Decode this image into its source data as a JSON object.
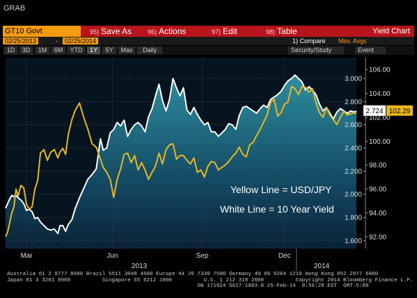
{
  "window_title": "GRAB",
  "toolbar": {
    "ticker": "GT10 Govt",
    "buttons": [
      {
        "num": "95)",
        "label": "Save As"
      },
      {
        "num": "96)",
        "label": "Actions"
      },
      {
        "num": "97)",
        "label": "Edit"
      },
      {
        "num": "98)",
        "label": "Table"
      }
    ],
    "chart_title": "Yield Chart"
  },
  "date_bar": {
    "start": "02/25/2013",
    "end": "02/25/2014",
    "dash": "-",
    "compare": "1) Compare",
    "mov_avgs": "Mov. Avgs"
  },
  "periods": [
    "1D",
    "3D",
    "1M",
    "6M",
    "YTD",
    "1Y",
    "5Y",
    "Max",
    "Daily"
  ],
  "active_period": "1Y",
  "security_study": "Security/Study",
  "event": "Event",
  "colors": {
    "yield_line": "#ffffff",
    "usdjpy_line": "#e8b820",
    "orange": "#f59b12",
    "red": "#b7151b"
  },
  "chart_data": {
    "type": "line",
    "x_ticks": [
      "Mar",
      "Jun",
      "Sep",
      "Dec"
    ],
    "x_years": [
      "2013",
      "2014"
    ],
    "left_axis_ticks": [
      92.0,
      94.0,
      96.0,
      98.0,
      100.0,
      102.0,
      104.0,
      106.0
    ],
    "left_axis_labels": [
      "92.00",
      "94.00",
      "96.00",
      "98.00",
      "100.00",
      "102.00",
      "104.00",
      "106.00"
    ],
    "right_axis_ticks": [
      1.6,
      1.8,
      2.0,
      2.2,
      2.4,
      2.6,
      2.8,
      3.0
    ],
    "right_axis_labels": [
      "1.600",
      "1.800",
      "2.000",
      "2.200",
      "2.400",
      "2.600",
      "2.800",
      "3.000"
    ],
    "ylim_usdjpy": [
      91.0,
      107.0
    ],
    "ylim_yield": [
      1.53,
      3.18
    ],
    "annotations": [
      "Yellow Line = USD/JPY",
      "White Line = 10 Year Yield"
    ],
    "last_labels": {
      "yield": "2.724",
      "usdjpy": "102.29"
    },
    "series": [
      {
        "key": "yield",
        "axis": "right",
        "color": "#ffffff",
        "x": [
          0,
          3,
          6,
          9,
          12,
          15,
          18,
          22,
          26,
          30,
          34,
          38,
          42,
          46,
          50,
          55,
          60,
          65,
          70,
          75,
          78,
          82,
          86,
          90,
          95,
          100,
          106,
          112,
          118,
          124,
          130,
          136,
          140,
          145,
          150,
          155,
          160,
          165,
          170,
          175,
          180,
          185,
          190,
          195,
          200,
          205,
          210,
          215,
          220,
          225,
          230,
          235,
          240,
          245,
          250,
          255,
          260,
          265,
          270,
          275,
          280,
          285,
          290,
          295,
          300,
          305,
          310,
          315,
          320,
          325,
          330,
          335,
          340,
          345,
          350,
          355,
          360,
          365,
          370,
          375,
          380,
          385,
          390,
          395,
          400,
          405,
          410,
          415,
          420,
          425,
          430,
          435,
          440,
          445,
          450,
          455,
          460,
          465,
          470,
          475,
          480,
          485,
          490,
          495,
          500,
          503
        ],
        "y": [
          1.88,
          1.92,
          1.96,
          1.99,
          1.98,
          1.99,
          1.97,
          1.95,
          1.92,
          1.86,
          1.87,
          1.85,
          1.79,
          1.8,
          1.76,
          1.73,
          1.7,
          1.69,
          1.7,
          1.66,
          1.73,
          1.73,
          1.68,
          1.74,
          1.78,
          1.88,
          1.97,
          2.05,
          2.13,
          2.17,
          2.22,
          2.48,
          2.38,
          2.4,
          2.53,
          2.56,
          2.62,
          2.59,
          2.64,
          2.5,
          2.56,
          2.6,
          2.62,
          2.59,
          2.54,
          2.67,
          2.74,
          2.85,
          2.95,
          2.81,
          2.72,
          2.82,
          3.0,
          2.92,
          2.85,
          2.92,
          2.73,
          2.69,
          2.75,
          2.69,
          2.64,
          2.6,
          2.62,
          2.54,
          2.54,
          2.5,
          2.53,
          2.56,
          2.61,
          2.6,
          2.56,
          2.68,
          2.75,
          2.76,
          2.74,
          2.72,
          2.7,
          2.74,
          2.77,
          2.75,
          2.82,
          2.84,
          2.86,
          2.89,
          2.94,
          2.98,
          3.0,
          3.03,
          3.0,
          2.97,
          2.9,
          2.93,
          2.9,
          2.86,
          2.78,
          2.72,
          2.75,
          2.7,
          2.65,
          2.71,
          2.74,
          2.72,
          2.7,
          2.72,
          2.71,
          2.72
        ]
      },
      {
        "key": "usdjpy",
        "axis": "left",
        "color": "#e8b820",
        "x": [
          0,
          3,
          6,
          9,
          12,
          15,
          18,
          22,
          26,
          30,
          34,
          38,
          42,
          46,
          50,
          55,
          60,
          65,
          70,
          75,
          78,
          82,
          86,
          90,
          95,
          100,
          106,
          112,
          118,
          124,
          130,
          136,
          140,
          145,
          150,
          155,
          160,
          165,
          170,
          175,
          180,
          185,
          190,
          195,
          200,
          205,
          210,
          215,
          220,
          225,
          230,
          235,
          240,
          245,
          250,
          255,
          260,
          265,
          270,
          275,
          280,
          285,
          290,
          295,
          300,
          305,
          310,
          315,
          320,
          325,
          330,
          335,
          340,
          345,
          350,
          355,
          360,
          365,
          370,
          375,
          380,
          385,
          390,
          395,
          400,
          405,
          410,
          415,
          420,
          425,
          430,
          435,
          440,
          445,
          450,
          455,
          460,
          465,
          470,
          475,
          480,
          485,
          490,
          495,
          500,
          503
        ],
        "y": [
          92.0,
          92.4,
          93.2,
          94.0,
          94.5,
          96.0,
          95.4,
          96.3,
          96.1,
          94.7,
          94.3,
          94.5,
          96.0,
          96.7,
          99.0,
          99.3,
          98.4,
          99.1,
          99.3,
          98.6,
          99.1,
          99.4,
          98.9,
          100.6,
          101.8,
          102.6,
          103.2,
          102.0,
          101.0,
          99.8,
          99.5,
          98.5,
          97.8,
          97.4,
          96.8,
          95.3,
          96.8,
          97.7,
          98.9,
          99.0,
          98.2,
          98.8,
          97.6,
          98.2,
          97.6,
          96.8,
          97.4,
          97.9,
          99.0,
          98.1,
          99.3,
          99.7,
          99.8,
          98.5,
          98.8,
          98.8,
          98.4,
          98.1,
          98.6,
          97.4,
          97.6,
          97.0,
          97.9,
          98.3,
          98.2,
          97.6,
          97.8,
          98.0,
          98.3,
          98.7,
          99.0,
          99.5,
          98.9,
          98.7,
          99.7,
          99.9,
          100.5,
          101.0,
          101.6,
          102.2,
          103.3,
          103.5,
          102.1,
          102.4,
          103.1,
          103.3,
          104.6,
          104.4,
          103.9,
          104.6,
          104.5,
          104.1,
          104.4,
          103.2,
          102.4,
          102.0,
          102.8,
          102.2,
          101.8,
          101.4,
          102.0,
          102.5,
          102.2,
          102.3,
          102.4,
          102.29
        ]
      }
    ]
  },
  "footer": {
    "line1": "Australia 61 2 9777 8600 Brazil 5511 3048 4500 Europe 44 20 7330 7500 Germany 49 69 9204 1210 Hong Kong 852 2977 6000",
    "line2": "Japan 81 3 3201 8900          Singapore 65 6212 1000          U.S. 1 212 318 2000          Copyright 2014 Bloomberg Finance L.P.",
    "line3": "                                                            SN 171924 G627-1883-0 25-Feb-14  8:56:28 EST  GMT-5:00"
  }
}
